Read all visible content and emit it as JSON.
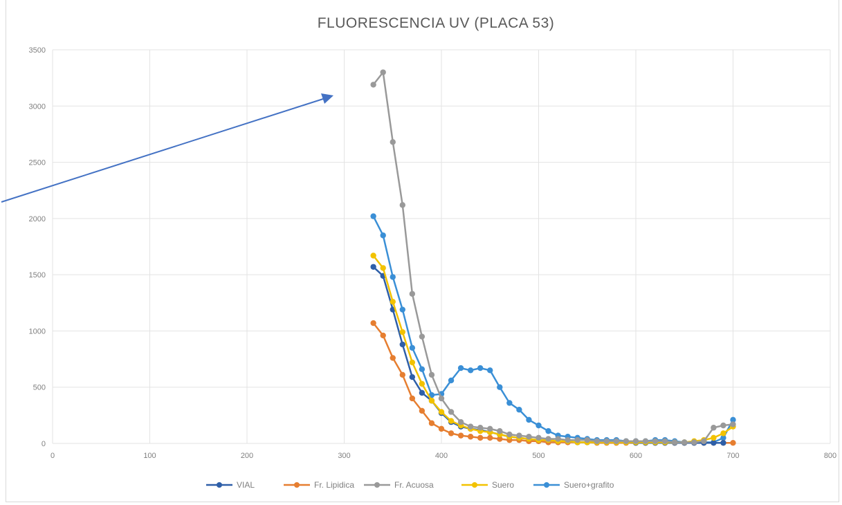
{
  "chart_data": {
    "type": "scatter",
    "title": "FLUORESCENCIA UV   (PLACA 53)",
    "xlabel": "",
    "ylabel": "",
    "xlim": [
      0,
      800
    ],
    "ylim": [
      0,
      3500
    ],
    "xticks": [
      0,
      100,
      200,
      300,
      400,
      500,
      600,
      700,
      800
    ],
    "yticks": [
      0,
      500,
      1000,
      1500,
      2000,
      2500,
      3000,
      3500
    ],
    "grid": true,
    "legend_position": "bottom",
    "series": [
      {
        "name": "VIAL",
        "color": "#2e5fa8",
        "x": [
          330,
          340,
          350,
          360,
          370,
          380,
          390,
          400,
          410,
          420,
          430,
          440,
          450,
          460,
          470,
          480,
          490,
          500,
          510,
          520,
          530,
          540,
          550,
          560,
          570,
          580,
          590,
          600,
          610,
          620,
          630,
          640,
          650,
          660,
          670,
          680,
          690
        ],
        "y": [
          1570,
          1490,
          1190,
          880,
          590,
          450,
          380,
          270,
          190,
          150,
          130,
          120,
          100,
          80,
          60,
          50,
          40,
          30,
          30,
          20,
          20,
          10,
          10,
          10,
          10,
          10,
          10,
          5,
          5,
          5,
          5,
          5,
          5,
          5,
          5,
          5,
          5
        ]
      },
      {
        "name": "Fr. Lipidica",
        "color": "#e67e30",
        "x": [
          330,
          340,
          350,
          360,
          370,
          380,
          390,
          400,
          410,
          420,
          430,
          440,
          450,
          460,
          470,
          480,
          490,
          500,
          510,
          520,
          530,
          540,
          550,
          560,
          570,
          580,
          590,
          600,
          610,
          620,
          630,
          640,
          650,
          660,
          670,
          680,
          690,
          700
        ],
        "y": [
          1070,
          960,
          760,
          610,
          400,
          290,
          180,
          130,
          90,
          70,
          60,
          50,
          50,
          40,
          30,
          30,
          20,
          20,
          10,
          10,
          10,
          10,
          10,
          5,
          5,
          5,
          5,
          5,
          5,
          5,
          5,
          5,
          5,
          5,
          5,
          5,
          5,
          5
        ]
      },
      {
        "name": "Fr. Acuosa",
        "color": "#999999",
        "x": [
          330,
          340,
          350,
          360,
          370,
          380,
          390,
          400,
          410,
          420,
          430,
          440,
          450,
          460,
          470,
          480,
          490,
          500,
          510,
          520,
          530,
          540,
          550,
          560,
          570,
          580,
          590,
          600,
          610,
          620,
          630,
          640,
          650,
          660,
          670,
          680,
          690,
          700
        ],
        "y": [
          3190,
          3300,
          2680,
          2120,
          1330,
          950,
          610,
          400,
          280,
          190,
          150,
          140,
          130,
          110,
          80,
          70,
          60,
          50,
          40,
          40,
          30,
          30,
          30,
          20,
          20,
          20,
          20,
          20,
          20,
          20,
          20,
          10,
          10,
          10,
          20,
          140,
          160,
          170
        ]
      },
      {
        "name": "Suero",
        "color": "#f2c200",
        "x": [
          330,
          340,
          350,
          360,
          370,
          380,
          390,
          400,
          410,
          420,
          430,
          440,
          450,
          460,
          470,
          480,
          490,
          500,
          510,
          520,
          530,
          540,
          550,
          560,
          570,
          580,
          590,
          600,
          610,
          620,
          630,
          640,
          650,
          660,
          670,
          680,
          690,
          700
        ],
        "y": [
          1670,
          1560,
          1260,
          990,
          720,
          530,
          380,
          280,
          200,
          160,
          130,
          110,
          100,
          80,
          60,
          50,
          40,
          30,
          30,
          20,
          20,
          10,
          10,
          10,
          10,
          10,
          10,
          10,
          10,
          10,
          10,
          10,
          10,
          20,
          30,
          50,
          90,
          150
        ]
      },
      {
        "name": "Suero+grafito",
        "color": "#3a8fd6",
        "x": [
          330,
          340,
          350,
          360,
          370,
          380,
          390,
          400,
          410,
          420,
          430,
          440,
          450,
          460,
          470,
          480,
          490,
          500,
          510,
          520,
          530,
          540,
          550,
          560,
          570,
          580,
          590,
          600,
          610,
          620,
          630,
          640,
          650,
          660,
          670,
          680,
          690,
          700
        ],
        "y": [
          2020,
          1850,
          1480,
          1190,
          850,
          660,
          430,
          440,
          560,
          670,
          650,
          670,
          650,
          500,
          360,
          300,
          210,
          160,
          110,
          70,
          60,
          50,
          40,
          30,
          30,
          30,
          20,
          20,
          20,
          30,
          30,
          20,
          10,
          10,
          10,
          10,
          50,
          210
        ]
      }
    ]
  },
  "annotation": {
    "arrow_color": "#4472c4"
  }
}
